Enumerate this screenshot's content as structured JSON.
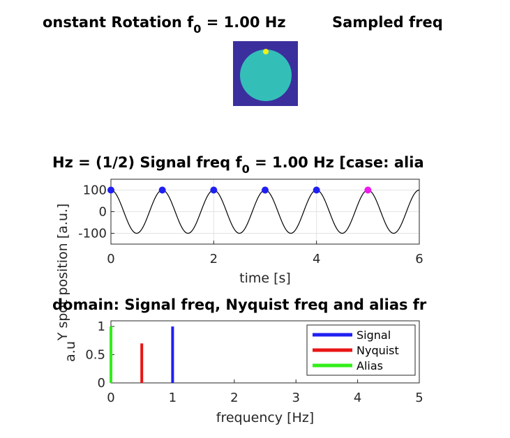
{
  "figure": {
    "title_top_left": "onstant Rotation f",
    "title_top_sub": "0",
    "title_top_right": " = 1.00 Hz",
    "title_top_extra": "Sampled freq",
    "disk": {
      "background": "#3b2f9e",
      "disk_color": "#33bfb8",
      "dot_color": "#f4ee1a"
    }
  },
  "chart_data": [
    {
      "type": "line",
      "title_left": "Hz = (1/2) Signal freq f",
      "title_sub": "0",
      "title_right": " = 1.00 Hz [case: alia",
      "xlabel": "time [s]",
      "ylabel": "Y spot position [a.u.]",
      "xlim": [
        0,
        6
      ],
      "ylim": [
        -150,
        150
      ],
      "xticks": [
        0,
        2,
        4,
        6
      ],
      "yticks": [
        -100,
        0,
        100
      ],
      "ytick_labels": [
        "-100",
        "0",
        "100"
      ],
      "grid": true,
      "signal_freq_hz": 1.0,
      "amplitude": 100,
      "line_color": "#000000",
      "samples": [
        {
          "x": 0,
          "y": 100,
          "color": "#1f1ff2"
        },
        {
          "x": 1,
          "y": 100,
          "color": "#1f1ff2"
        },
        {
          "x": 2,
          "y": 100,
          "color": "#1f1ff2"
        },
        {
          "x": 3,
          "y": 100,
          "color": "#1f1ff2"
        },
        {
          "x": 4,
          "y": 100,
          "color": "#1f1ff2"
        },
        {
          "x": 5,
          "y": 100,
          "color": "#ee1aee"
        }
      ]
    },
    {
      "type": "bar",
      "title": "domain: Signal freq, Nyquist freq and alias fr",
      "xlabel": "frequency [Hz]",
      "ylabel": "a.u",
      "xlim": [
        0,
        5
      ],
      "ylim": [
        0,
        1.1
      ],
      "xticks": [
        0,
        1,
        2,
        3,
        4,
        5
      ],
      "yticks": [
        0,
        0.5,
        1
      ],
      "ytick_labels": [
        "0",
        "0.5",
        "1"
      ],
      "legend_position": "top-right",
      "series": [
        {
          "name": "Signal",
          "x": 1.0,
          "value": 1.0,
          "color": "#1f1ff2"
        },
        {
          "name": "Nyquist",
          "x": 0.5,
          "value": 0.7,
          "color": "#e91515"
        },
        {
          "name": "Alias",
          "x": 0.0,
          "value": 1.0,
          "color": "#33ee1a"
        }
      ]
    }
  ]
}
